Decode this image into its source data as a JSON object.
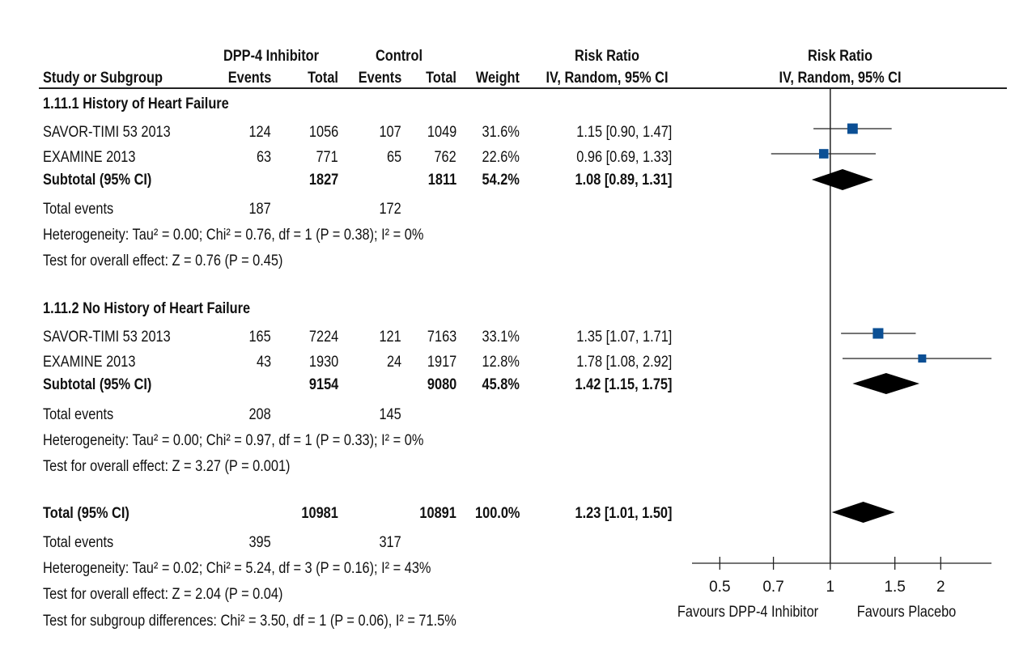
{
  "headers": {
    "group_label": "DPP-4 Inhibitor",
    "control_label": "Control",
    "rr_label": "Risk Ratio",
    "plot_label": "Risk Ratio",
    "study": "Study or Subgroup",
    "events": "Events",
    "total": "Total",
    "events2": "Events",
    "total2": "Total",
    "weight": "Weight",
    "method": "IV, Random, 95% CI",
    "plot_method": "IV, Random, 95% CI"
  },
  "subgroups": [
    {
      "title": "1.11.1 History of Heart Failure",
      "studies": [
        {
          "name": "SAVOR-TIMI 53 2013",
          "e1": "124",
          "t1": "1056",
          "e2": "107",
          "t2": "1049",
          "weight": "31.6%",
          "ci": "1.15 [0.90, 1.47]"
        },
        {
          "name": "EXAMINE 2013",
          "e1": "63",
          "t1": "771",
          "e2": "65",
          "t2": "762",
          "weight": "22.6%",
          "ci": "0.96 [0.69, 1.33]"
        }
      ],
      "subtotal": {
        "label": "Subtotal (95% CI)",
        "t1": "1827",
        "t2": "1811",
        "weight": "54.2%",
        "ci": "1.08 [0.89, 1.31]"
      },
      "events": {
        "label": "Total events",
        "e1": "187",
        "e2": "172"
      },
      "heterogeneity": "Heterogeneity: Tau² = 0.00; Chi² = 0.76, df = 1 (P = 0.38); I² = 0%",
      "overall": "Test for overall effect: Z = 0.76 (P = 0.45)"
    },
    {
      "title": "1.11.2 No History of Heart Failure",
      "studies": [
        {
          "name": "SAVOR-TIMI 53 2013",
          "e1": "165",
          "t1": "7224",
          "e2": "121",
          "t2": "7163",
          "weight": "33.1%",
          "ci": "1.35 [1.07, 1.71]"
        },
        {
          "name": "EXAMINE 2013",
          "e1": "43",
          "t1": "1930",
          "e2": "24",
          "t2": "1917",
          "weight": "12.8%",
          "ci": "1.78 [1.08, 2.92]"
        }
      ],
      "subtotal": {
        "label": "Subtotal (95% CI)",
        "t1": "9154",
        "t2": "9080",
        "weight": "45.8%",
        "ci": "1.42 [1.15, 1.75]"
      },
      "events": {
        "label": "Total events",
        "e1": "208",
        "e2": "145"
      },
      "heterogeneity": "Heterogeneity: Tau² = 0.00; Chi² = 0.97, df = 1 (P = 0.33); I² = 0%",
      "overall": "Test for overall effect: Z = 3.27 (P = 0.001)"
    }
  ],
  "total": {
    "label": "Total (95% CI)",
    "t1": "10981",
    "t2": "10891",
    "weight": "100.0%",
    "ci": "1.23 [1.01, 1.50]"
  },
  "total_events": {
    "label": "Total events",
    "e1": "395",
    "e2": "317"
  },
  "total_heterogeneity": "Heterogeneity: Tau² = 0.02; Chi² = 5.24, df = 3 (P = 0.16); I² = 43%",
  "total_overall": "Test for overall effect: Z = 2.04 (P = 0.04)",
  "subgroup_diff": "Test for subgroup differences: Chi² = 3.50, df = 1 (P = 0.06), I² = 71.5%",
  "chart_data": {
    "type": "forest",
    "scale": "log",
    "null_value": 1,
    "xlim": [
      0.42,
      2.75
    ],
    "ticks": [
      0.5,
      0.7,
      1,
      1.5,
      2
    ],
    "tick_labels": [
      "0.5",
      "0.7",
      "1",
      "1.5",
      "2"
    ],
    "left_label": "Favours DPP-4 Inhibitor",
    "right_label": "Favours Placebo",
    "marker_color": "#0b4f94",
    "studies": [
      {
        "name": "SAVOR-TIMI 53 2013",
        "subgroup": "1.11.1 History of Heart Failure",
        "rr": 1.15,
        "lo": 0.9,
        "hi": 1.47,
        "weight": 31.6
      },
      {
        "name": "EXAMINE 2013",
        "subgroup": "1.11.1 History of Heart Failure",
        "rr": 0.96,
        "lo": 0.69,
        "hi": 1.33,
        "weight": 22.6
      },
      {
        "name": "SAVOR-TIMI 53 2013",
        "subgroup": "1.11.2 No History of Heart Failure",
        "rr": 1.35,
        "lo": 1.07,
        "hi": 1.71,
        "weight": 33.1
      },
      {
        "name": "EXAMINE 2013",
        "subgroup": "1.11.2 No History of Heart Failure",
        "rr": 1.78,
        "lo": 1.08,
        "hi": 2.92,
        "weight": 12.8
      }
    ],
    "pooled": [
      {
        "name": "Subtotal (95% CI)",
        "subgroup": "1.11.1 History of Heart Failure",
        "rr": 1.08,
        "lo": 0.89,
        "hi": 1.31
      },
      {
        "name": "Subtotal (95% CI)",
        "subgroup": "1.11.2 No History of Heart Failure",
        "rr": 1.42,
        "lo": 1.15,
        "hi": 1.75
      },
      {
        "name": "Total (95% CI)",
        "rr": 1.23,
        "lo": 1.01,
        "hi": 1.5
      }
    ]
  }
}
